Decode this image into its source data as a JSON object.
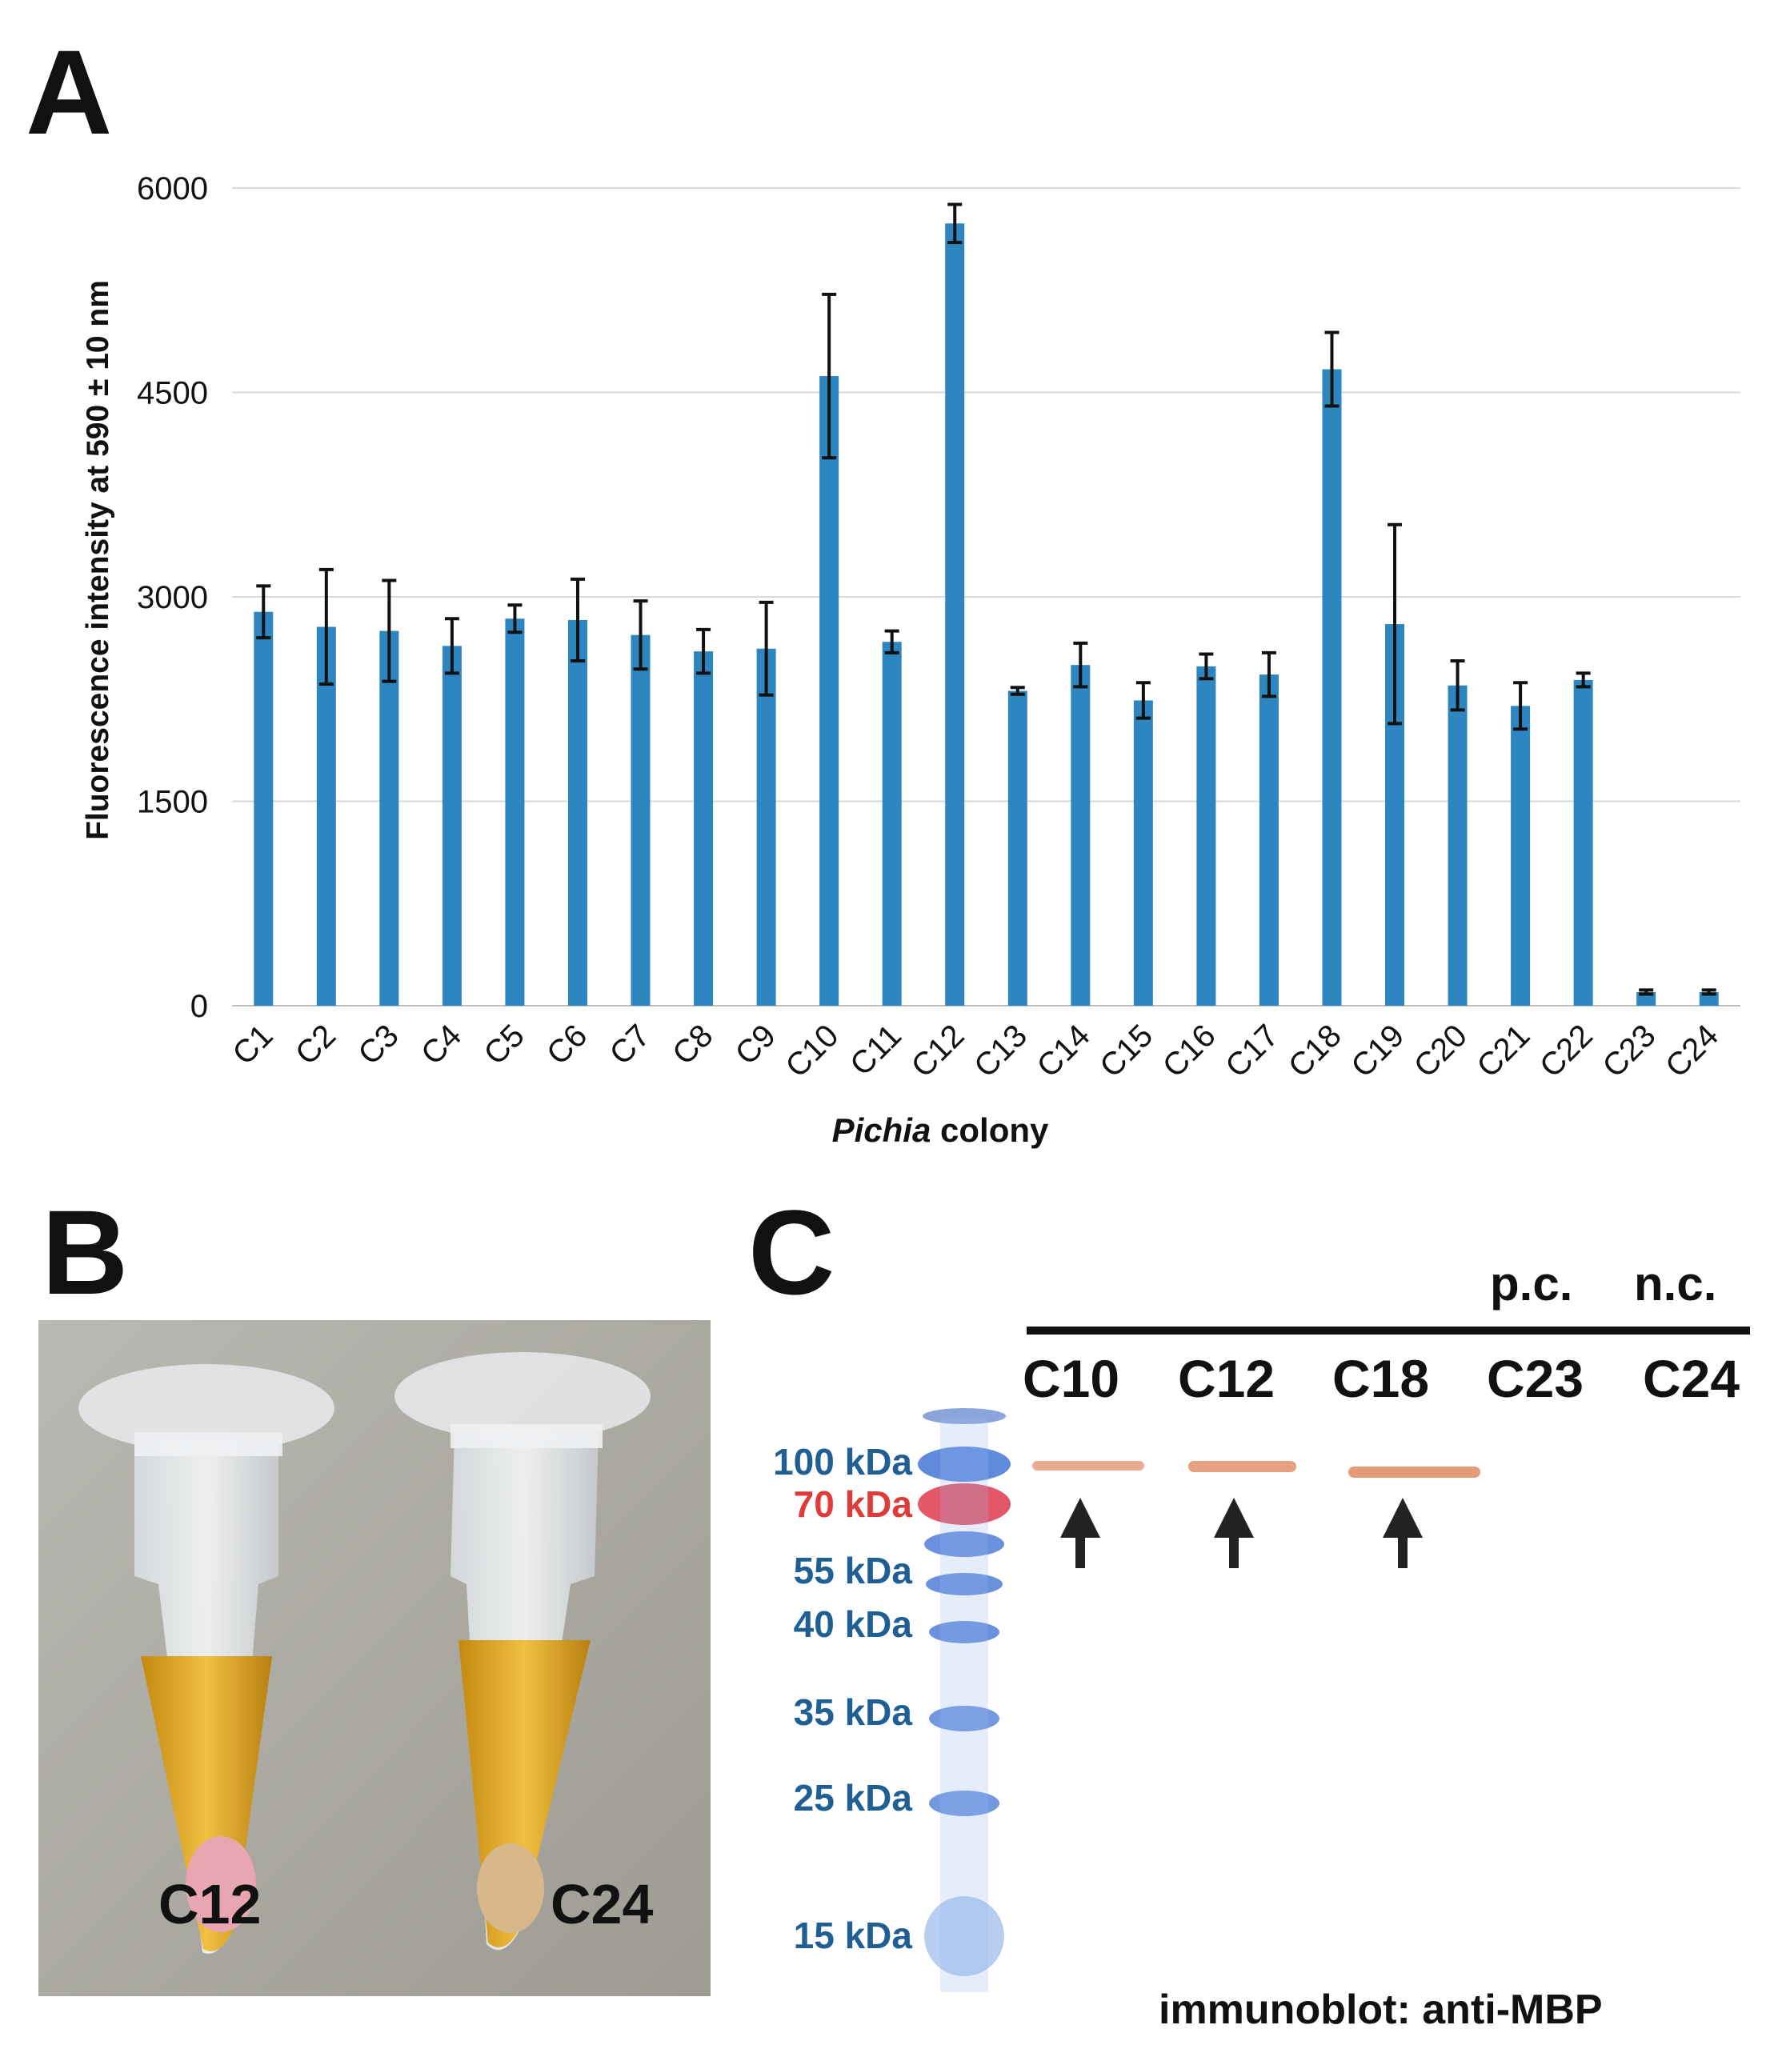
{
  "panels": {
    "a": "A",
    "b": "B",
    "c": "C"
  },
  "chart_data": {
    "type": "bar",
    "ylabel": "Fluorescence intensity at 590 ± 10 nm",
    "xlabel_italic": "Pichia",
    "xlabel_rest": " colony",
    "ylim": [
      0,
      6000
    ],
    "yticks": [
      0,
      1500,
      3000,
      4500,
      6000
    ],
    "grid": true,
    "bar_color": "#2E86C1",
    "categories": [
      "C1",
      "C2",
      "C3",
      "C4",
      "C5",
      "C6",
      "C7",
      "C8",
      "C9",
      "C10",
      "C11",
      "C12",
      "C13",
      "C14",
      "C15",
      "C16",
      "C17",
      "C18",
      "C19",
      "C20",
      "C21",
      "C22",
      "C23",
      "C24"
    ],
    "values": [
      2890,
      2780,
      2750,
      2640,
      2840,
      2830,
      2720,
      2600,
      2620,
      4620,
      2670,
      5740,
      2310,
      2500,
      2240,
      2490,
      2430,
      4670,
      2800,
      2350,
      2200,
      2390,
      100,
      100
    ],
    "errors": [
      190,
      420,
      370,
      200,
      100,
      300,
      250,
      160,
      340,
      600,
      80,
      140,
      25,
      160,
      130,
      90,
      160,
      270,
      730,
      180,
      170,
      50,
      15,
      15
    ]
  },
  "panel_b": {
    "tube_labels": [
      "C12",
      "C24"
    ],
    "colors": {
      "background": "#a9a8a0",
      "liquid": "#d9a41a",
      "pellet_pink": "#e8a6b0",
      "pellet_beige": "#d8b88a"
    }
  },
  "panel_c": {
    "top_labels": {
      "pc": "p.c.",
      "nc": "n.c."
    },
    "lanes": [
      "C10",
      "C12",
      "C18",
      "C23",
      "C24"
    ],
    "markers": [
      {
        "label": "100 kDa",
        "color": "#1f5f94"
      },
      {
        "label": "70 kDa",
        "color": "#e03b3b"
      },
      {
        "label": "55 kDa",
        "color": "#1f5f94"
      },
      {
        "label": "40 kDa",
        "color": "#1f5f94"
      },
      {
        "label": "35 kDa",
        "color": "#1f5f94"
      },
      {
        "label": "25 kDa",
        "color": "#1f5f94"
      },
      {
        "label": "15 kDa",
        "color": "#1f5f94"
      }
    ],
    "caption": "immunoblot: anti-MBP"
  }
}
